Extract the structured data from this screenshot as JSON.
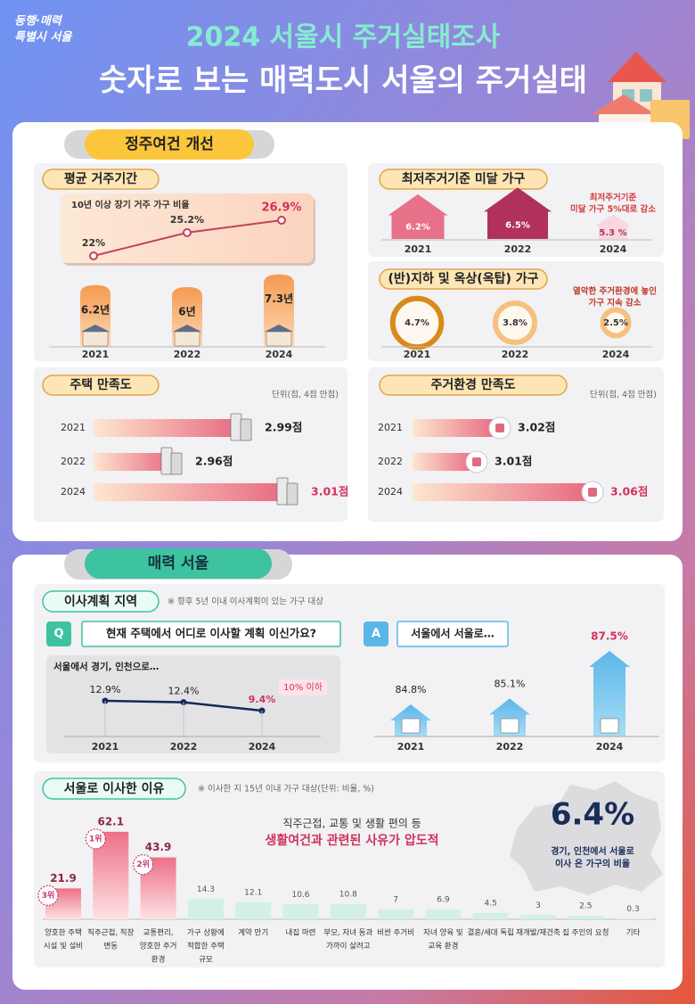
{
  "header": {
    "logo": [
      "동행·매력",
      "특별시 서울"
    ],
    "title": "2024 서울시 주거실태조사",
    "subtitle": "숫자로 보는 매력도시 서울의 주거실태"
  },
  "settlement": {
    "title": "정주여건 개선",
    "residence_period": {
      "title": "평균 거주기간",
      "years": [
        "2021",
        "2022",
        "2024"
      ],
      "long_term": {
        "title": "10년 이상 장기 거주 가구 비율",
        "values": [
          22,
          25.2,
          26.9
        ],
        "value_labels": [
          "22%",
          "25.2%",
          "26.9%"
        ]
      },
      "average": {
        "values": [
          6.2,
          6,
          7.3
        ],
        "value_labels": [
          "6.2년",
          "6년",
          "7.3년"
        ]
      }
    },
    "substandard": {
      "title": "최저주거기준 미달 가구",
      "years": [
        "2021",
        "2022",
        "2024"
      ],
      "values": [
        6.2,
        6.5,
        5.3
      ],
      "value_labels": [
        "6.2%",
        "6.5%",
        "5.3 %"
      ],
      "note": [
        "최저주거기준",
        "미달 가구 5%대로 감소"
      ]
    },
    "basement": {
      "title": "(반)지하 및 옥상(옥탑) 가구",
      "years": [
        "2021",
        "2022",
        "2024"
      ],
      "values": [
        4.7,
        3.8,
        2.5
      ],
      "value_labels": [
        "4.7%",
        "3.8%",
        "2.5%"
      ],
      "note": [
        "열악한 주거환경에 놓인",
        "가구 지속 감소"
      ]
    },
    "housing_satisfaction": {
      "title": "주택 만족도",
      "unit": "단위(점, 4점 만점)",
      "years": [
        "2021",
        "2022",
        "2024"
      ],
      "values": [
        2.99,
        2.96,
        3.01
      ],
      "value_labels": [
        "2.99점",
        "2.96점",
        "3.01점"
      ]
    },
    "environment_satisfaction": {
      "title": "주거환경 만족도",
      "unit": "단위(점, 4점 만점)",
      "years": [
        "2021",
        "2022",
        "2024"
      ],
      "values": [
        3.02,
        3.01,
        3.06
      ],
      "value_labels": [
        "3.02점",
        "3.01점",
        "3.06점"
      ]
    }
  },
  "attractive": {
    "title": "매력 서울",
    "moving_plan": {
      "title": "이사계획 지역",
      "note": "※ 향후 5년 이내 이사계획이 있는 가구 대상",
      "question_badge": "Q",
      "question": "현재 주택에서 어디로 이사할 계획 이신가요?",
      "answer_badge": "A",
      "answer": "서울에서 서울로…",
      "to_gyeonggi": {
        "title": "서울에서 경기, 인천으로…",
        "years": [
          "2021",
          "2022",
          "2024"
        ],
        "values": [
          12.9,
          12.4,
          9.4
        ],
        "value_labels": [
          "12.9%",
          "12.4%",
          "9.4%"
        ],
        "callout": "10% 이하"
      },
      "within_seoul": {
        "years": [
          "2021",
          "2022",
          "2024"
        ],
        "values": [
          84.8,
          85.1,
          87.5
        ],
        "value_labels": [
          "84.8%",
          "85.1%",
          "87.5%"
        ]
      }
    },
    "reasons": {
      "title": "서울로 이사한 이유",
      "note": "※ 이사한 지 15년 이내 가구 대상(단위: 비율, %)",
      "categories": [
        [
          "양호한 주택",
          "시설 및 설비"
        ],
        [
          "직주근접, 직장",
          "변동"
        ],
        [
          "교통편리,",
          "양호한 주거",
          "환경"
        ],
        [
          "가구 상황에",
          "적합한 주택",
          "규모"
        ],
        [
          "계약 만기"
        ],
        [
          "내집 마련"
        ],
        [
          "부모, 자녀 등과",
          "가까이 살려고"
        ],
        [
          "비싼 주거비"
        ],
        [
          "자녀 양육 및",
          "교육 환경"
        ],
        [
          "결혼/세대 독립"
        ],
        [
          "재개발/재건축"
        ],
        [
          "집 주인의 요청"
        ],
        [
          "기타"
        ]
      ],
      "ranks": [
        "3위",
        "1위",
        "2위",
        null,
        null,
        null,
        null,
        null,
        null,
        null,
        null,
        null,
        null
      ],
      "values": [
        21.9,
        62.1,
        43.9,
        14.3,
        12.1,
        10.6,
        10.8,
        7,
        6.9,
        4.5,
        3,
        2.5,
        0.3
      ],
      "headline": [
        "직주근접, 교통 및 생활 편의 등",
        "생활여건과 관련된 사유가 압도적"
      ],
      "inflow": {
        "value": 6.4,
        "value_label": "6.4%",
        "caption": [
          "경기, 인천에서 서울로",
          "이사 온 가구의 비율"
        ]
      }
    }
  }
}
